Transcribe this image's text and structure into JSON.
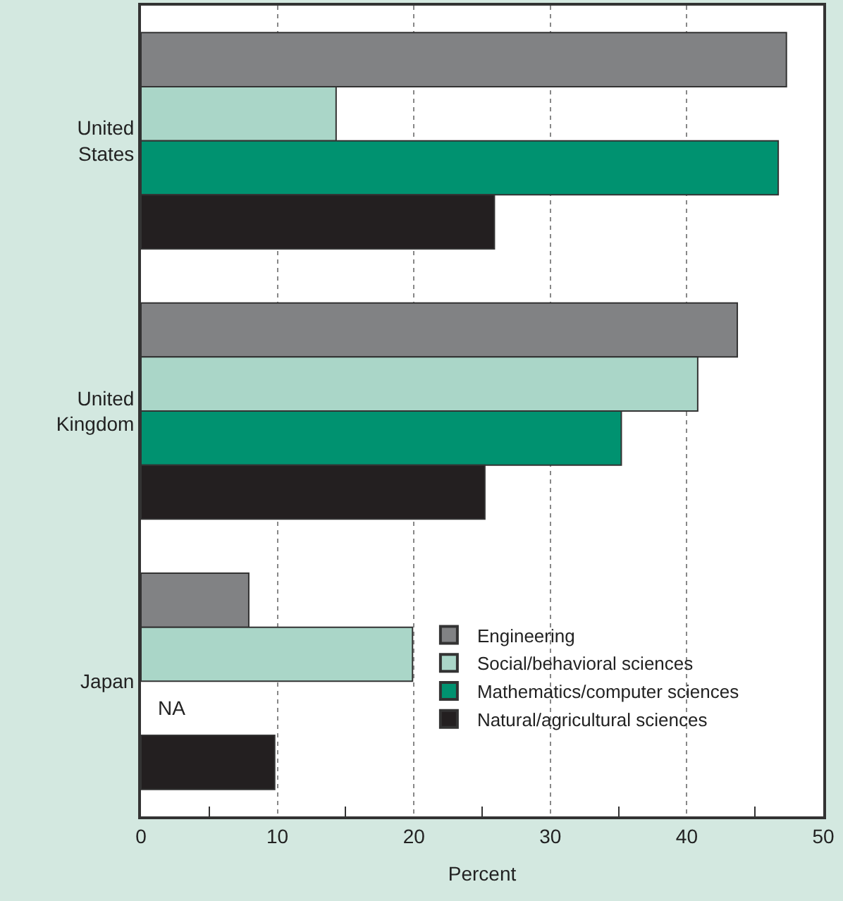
{
  "chart_data": {
    "type": "bar",
    "orientation": "horizontal",
    "xlabel": "Percent",
    "categories": [
      "United States",
      "United Kingdom",
      "Japan"
    ],
    "series": [
      {
        "name": "Engineering",
        "color": "#818284",
        "values": [
          47.3,
          43.7,
          7.9
        ]
      },
      {
        "name": "Social/behavioral sciences",
        "color": "#aad6c8",
        "values": [
          14.3,
          40.8,
          19.9
        ]
      },
      {
        "name": "Mathematics/computer sciences",
        "color": "#009270",
        "values": [
          46.7,
          35.2,
          null
        ]
      },
      {
        "name": "Natural/agricultural sciences",
        "color": "#231f20",
        "values": [
          25.9,
          25.2,
          9.8
        ]
      }
    ],
    "annotations": [
      "NA"
    ],
    "xlim": [
      0,
      50
    ],
    "xticks": [
      0,
      {
        "value": 5,
        "label": null
      },
      10,
      {
        "value": 15,
        "label": null
      },
      20,
      {
        "value": 25,
        "label": null
      },
      30,
      {
        "value": 35,
        "label": null
      },
      40,
      {
        "value": 45,
        "label": null
      },
      50
    ],
    "grid": "x",
    "legend": "bottom right"
  }
}
